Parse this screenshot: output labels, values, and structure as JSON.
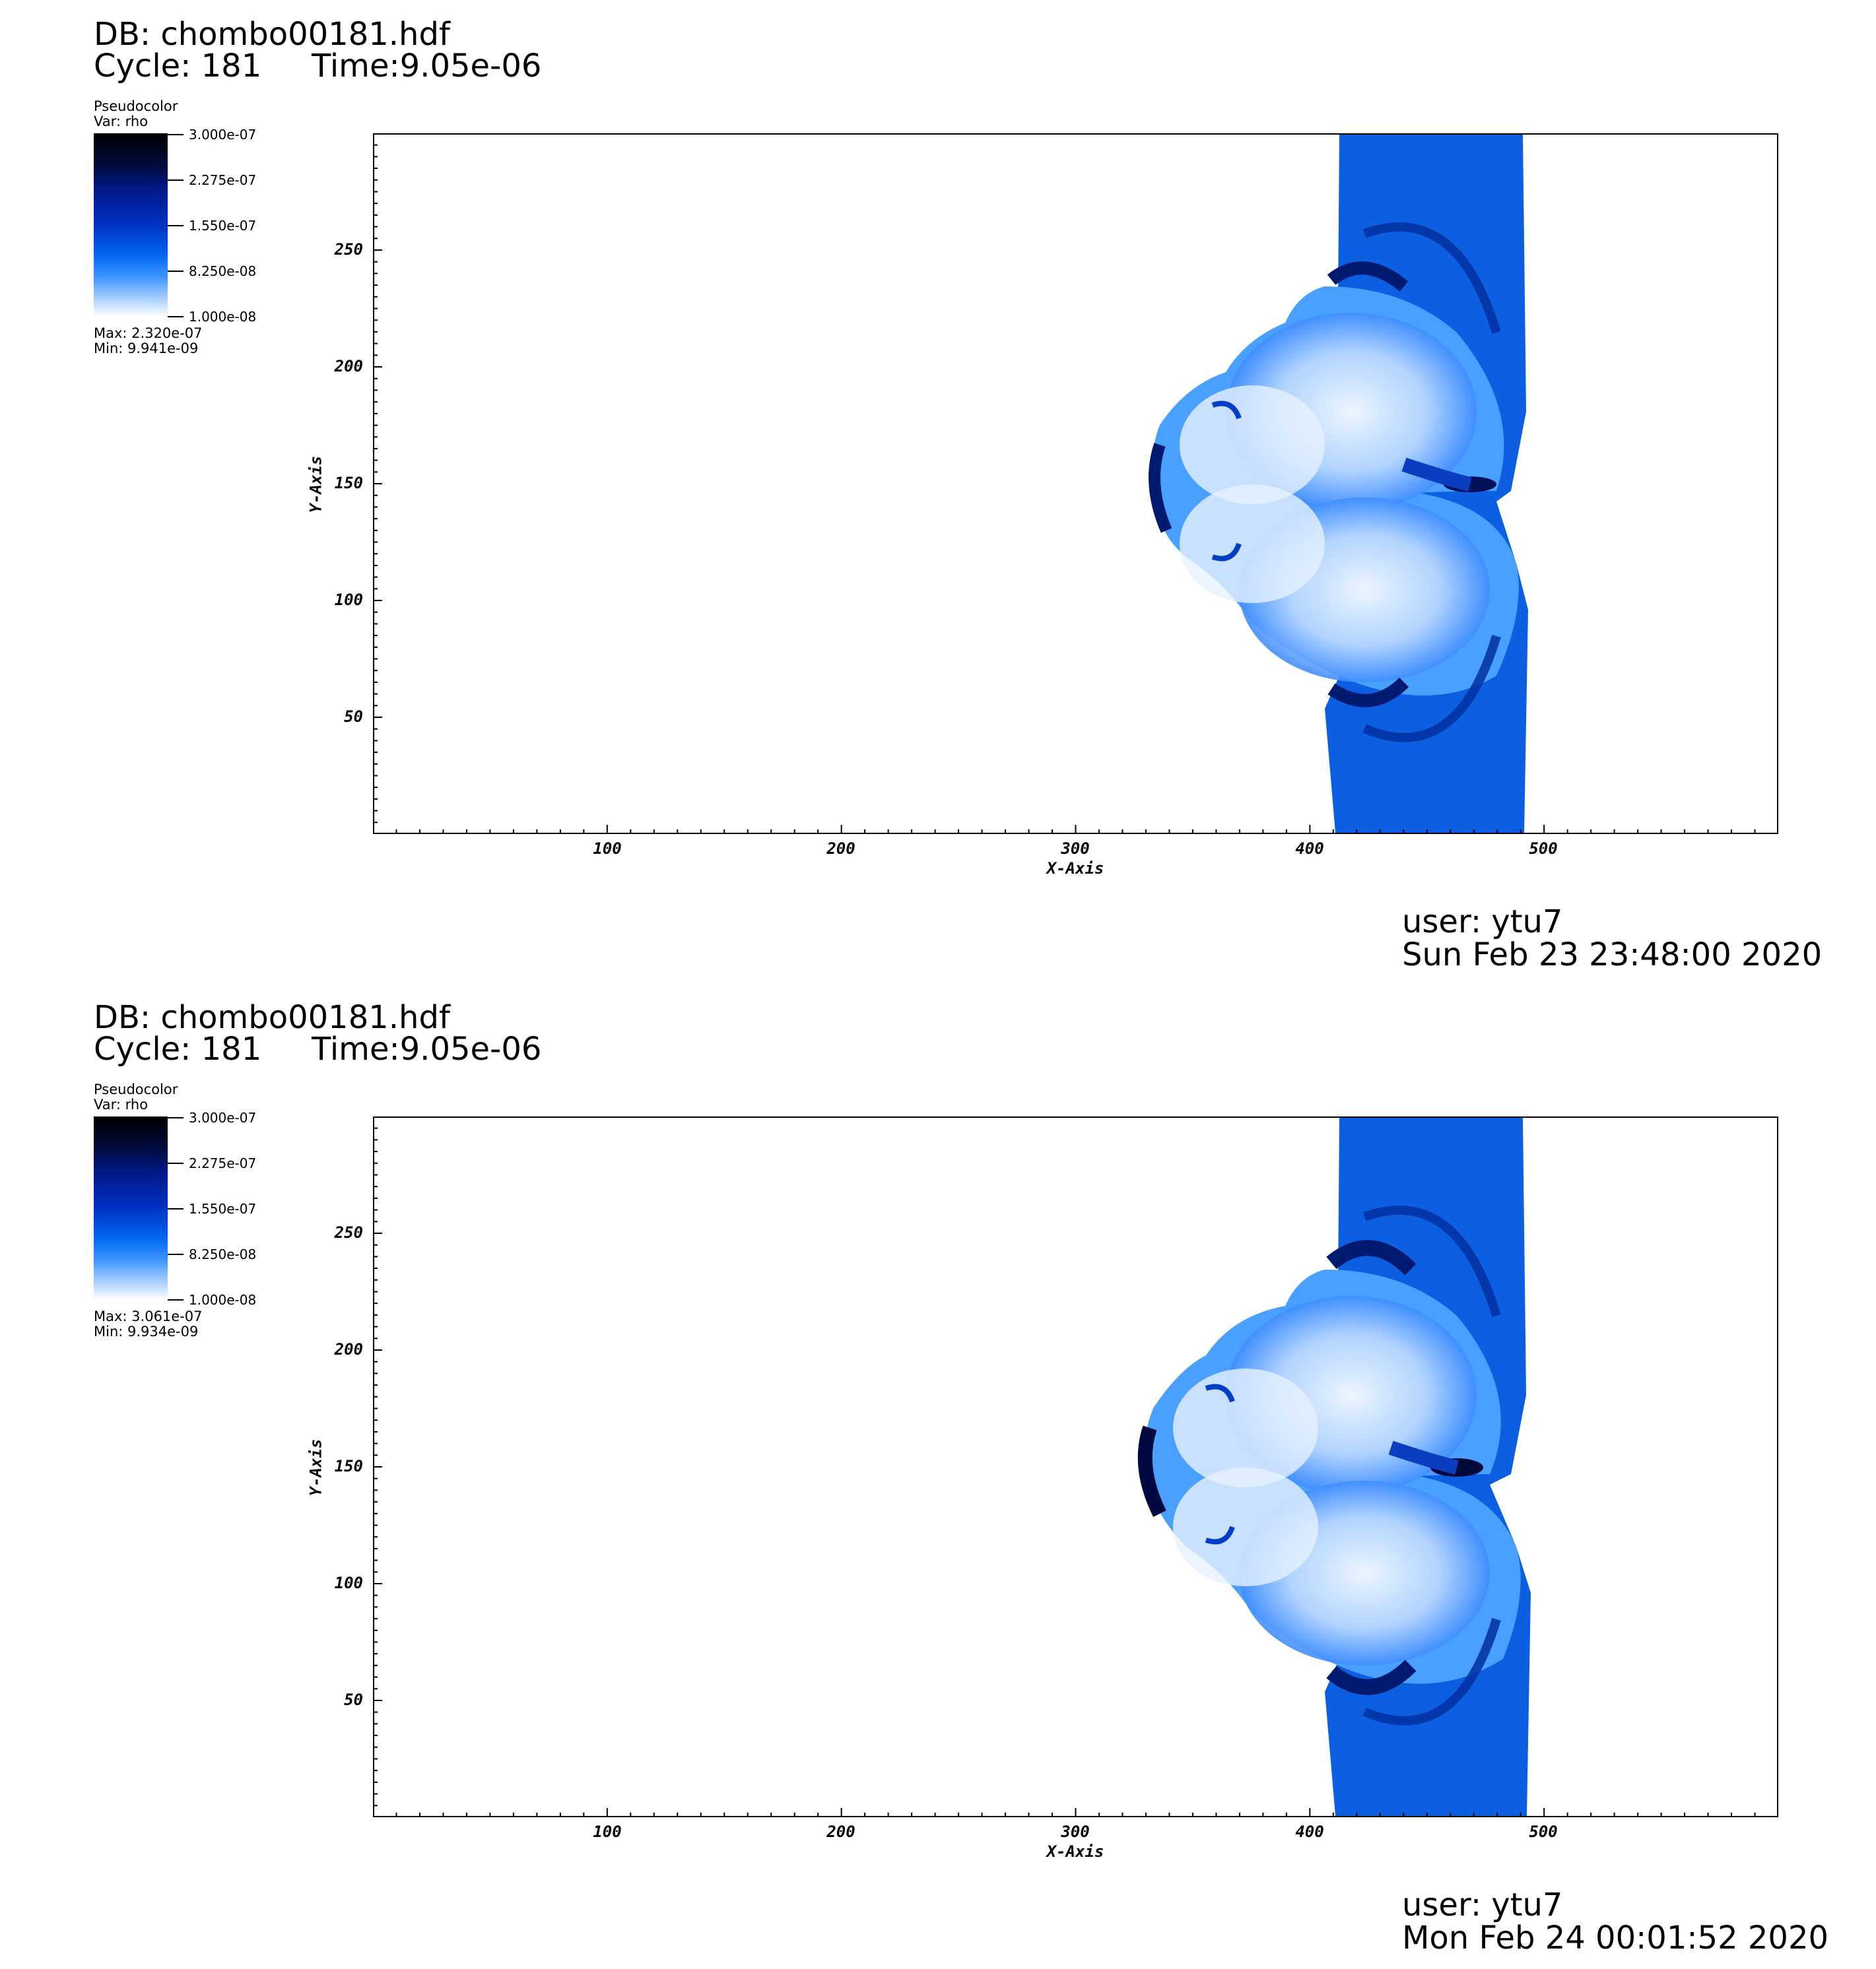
{
  "panels": [
    {
      "db_line": "DB: chombo00181.hdf",
      "cycle_line": "Cycle: 181",
      "time_line": "Time:9.05e-06",
      "legend": {
        "plot_type": "Pseudocolor",
        "var": "Var: rho",
        "ticks": [
          "3.000e-07",
          "2.275e-07",
          "1.550e-07",
          "8.250e-08",
          "1.000e-08"
        ],
        "max": "Max:  2.320e-07",
        "min": "Min:  9.941e-09"
      },
      "xlabel": "X-Axis",
      "ylabel": "Y-Axis",
      "user": "user: ytu7",
      "date": "Sun Feb 23 23:48:00 2020"
    },
    {
      "db_line": "DB: chombo00181.hdf",
      "cycle_line": "Cycle: 181",
      "time_line": "Time:9.05e-06",
      "legend": {
        "plot_type": "Pseudocolor",
        "var": "Var: rho",
        "ticks": [
          "3.000e-07",
          "2.275e-07",
          "1.550e-07",
          "8.250e-08",
          "1.000e-08"
        ],
        "max": "Max:  3.061e-07",
        "min": "Min:  9.934e-09"
      },
      "xlabel": "X-Axis",
      "ylabel": "Y-Axis",
      "user": "user: ytu7",
      "date": "Mon Feb 24 00:01:52 2020"
    }
  ],
  "axes": {
    "x_ticks": [
      "100",
      "200",
      "300",
      "400",
      "500"
    ],
    "y_ticks": [
      "250",
      "200",
      "150",
      "100",
      "50"
    ],
    "x_range": [
      0,
      600
    ],
    "y_range": [
      0,
      300
    ]
  },
  "colormap": {
    "high": "#000000",
    "mid_dark": "#001a8c",
    "mid": "#0055dd",
    "low": "#ffffff"
  }
}
